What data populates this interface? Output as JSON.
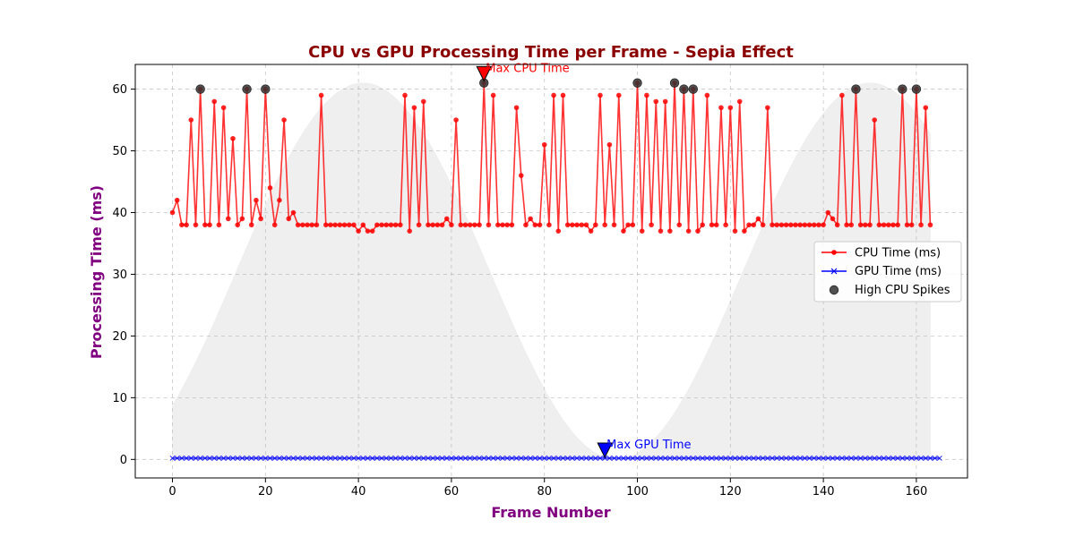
{
  "chart_data": {
    "type": "line",
    "title": "CPU vs GPU Processing Time per Frame - Sepia Effect",
    "xlabel": "Frame Number",
    "ylabel": "Processing Time (ms)",
    "xlim": [
      -8,
      171
    ],
    "ylim": [
      -3,
      64
    ],
    "xticks": [
      0,
      20,
      40,
      60,
      80,
      100,
      120,
      140,
      160
    ],
    "yticks": [
      0,
      10,
      20,
      30,
      40,
      50,
      60
    ],
    "grid": true,
    "legend_position": "center-right",
    "colors": {
      "cpu": "#ff0000",
      "gpu": "#0000ff",
      "spike": "#333333",
      "background_wave": "#d9d9d9",
      "title": "#8b0000",
      "axis_label": "#800080"
    },
    "series": [
      {
        "name": "CPU Time (ms)",
        "x_start": 0,
        "values": [
          40,
          42,
          38,
          38,
          55,
          38,
          60,
          38,
          38,
          58,
          38,
          57,
          39,
          52,
          38,
          39,
          60,
          38,
          42,
          39,
          60,
          44,
          38,
          42,
          55,
          39,
          40,
          38,
          38,
          38,
          38,
          38,
          59,
          38,
          38,
          38,
          38,
          38,
          38,
          38,
          37,
          38,
          37,
          37,
          38,
          38,
          38,
          38,
          38,
          38,
          59,
          37,
          57,
          38,
          58,
          38,
          38,
          38,
          38,
          39,
          38,
          55,
          38,
          38,
          38,
          38,
          38,
          61,
          38,
          59,
          38,
          38,
          38,
          38,
          57,
          46,
          38,
          39,
          38,
          38,
          51,
          38,
          59,
          37,
          59,
          38,
          38,
          38,
          38,
          38,
          37,
          38,
          59,
          38,
          51,
          38,
          59,
          37,
          38,
          38,
          61,
          37,
          59,
          38,
          58,
          37,
          58,
          37,
          61,
          38,
          60,
          37,
          60,
          37,
          38,
          59,
          38,
          38,
          57,
          38,
          57,
          37,
          58,
          37,
          38,
          38,
          39,
          38,
          57,
          38,
          38,
          38,
          38,
          38,
          38,
          38,
          38,
          38,
          38,
          38,
          38,
          40,
          39,
          38,
          59,
          38,
          38,
          60,
          38,
          38,
          38,
          55,
          38,
          38,
          38,
          38,
          38,
          60,
          38,
          38,
          60,
          38,
          57,
          38
        ]
      },
      {
        "name": "GPU Time (ms)",
        "x_start": 0,
        "values": [
          0.2,
          0.2,
          0.2,
          0.2,
          0.2,
          0.2,
          0.2,
          0.2,
          0.2,
          0.2,
          0.2,
          0.2,
          0.2,
          0.2,
          0.2,
          0.2,
          0.2,
          0.2,
          0.2,
          0.2,
          0.2,
          0.2,
          0.2,
          0.2,
          0.2,
          0.2,
          0.2,
          0.2,
          0.2,
          0.2,
          0.2,
          0.2,
          0.2,
          0.2,
          0.2,
          0.2,
          0.2,
          0.2,
          0.2,
          0.2,
          0.2,
          0.2,
          0.2,
          0.2,
          0.2,
          0.2,
          0.2,
          0.2,
          0.2,
          0.2,
          0.2,
          0.2,
          0.2,
          0.2,
          0.2,
          0.2,
          0.2,
          0.2,
          0.2,
          0.2,
          0.2,
          0.2,
          0.2,
          0.2,
          0.2,
          0.2,
          0.2,
          0.2,
          0.2,
          0.2,
          0.2,
          0.2,
          0.2,
          0.2,
          0.2,
          0.2,
          0.2,
          0.2,
          0.2,
          0.2,
          0.2,
          0.2,
          0.2,
          0.2,
          0.2,
          0.2,
          0.2,
          0.2,
          0.2,
          0.2,
          0.2,
          0.2,
          0.2,
          0.2,
          0.2,
          0.2,
          0.2,
          0.2,
          0.2,
          0.2,
          0.2,
          0.2,
          0.2,
          0.2,
          0.2,
          0.2,
          0.2,
          0.2,
          0.2,
          0.2,
          0.2,
          0.2,
          0.2,
          0.2,
          0.2,
          0.2,
          0.2,
          0.2,
          0.2,
          0.2,
          0.2,
          0.2,
          0.2,
          0.2,
          0.2,
          0.2,
          0.2,
          0.2,
          0.2,
          0.2,
          0.2,
          0.2,
          0.2,
          0.2,
          0.2,
          0.2,
          0.2,
          0.2,
          0.2,
          0.2,
          0.2,
          0.2,
          0.2,
          0.2,
          0.2,
          0.2,
          0.2,
          0.2,
          0.2,
          0.2,
          0.2,
          0.2,
          0.2,
          0.2,
          0.2,
          0.2,
          0.2,
          0.2,
          0.2,
          0.2,
          0.2,
          0.2,
          0.2,
          0.2,
          0.2,
          0.2
        ]
      },
      {
        "name": "High CPU Spikes",
        "type": "scatter",
        "x": [
          6,
          16,
          20,
          67,
          100,
          108,
          110,
          112,
          147,
          157,
          160
        ],
        "y": [
          60,
          60,
          60,
          61,
          61,
          61,
          60,
          60,
          60,
          60,
          60
        ]
      }
    ],
    "annotations": [
      {
        "text": "Max CPU Time",
        "x": 67,
        "y": 62.5,
        "color": "#ff0000"
      },
      {
        "text": "Max GPU Time",
        "x": 93,
        "y": 1.5,
        "color": "#0000ff"
      }
    ],
    "background_wave": {
      "x_range": [
        0,
        163
      ],
      "center": 30.5,
      "amplitude": 30.5,
      "period": 109,
      "peak_at": 41
    }
  }
}
